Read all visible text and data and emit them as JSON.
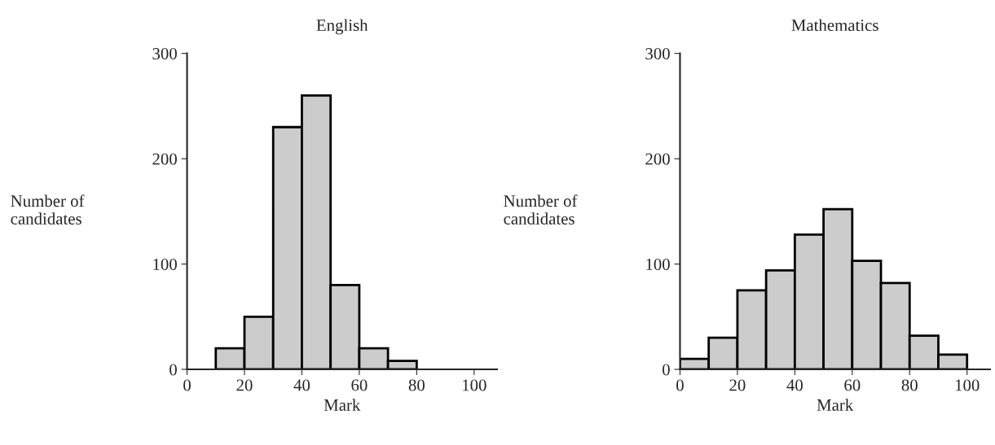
{
  "chart_data": [
    {
      "type": "histogram",
      "title": "English",
      "xlabel": "Mark",
      "ylabel": "Number of\ncandidates",
      "color": "#cccccc",
      "bins": [
        10,
        20,
        30,
        40,
        50,
        60,
        70,
        80
      ],
      "values": [
        20,
        50,
        230,
        260,
        80,
        20,
        8
      ],
      "xlim": [
        0,
        108
      ],
      "xticks": [
        0,
        20,
        40,
        60,
        80,
        100
      ],
      "ylim": [
        0,
        300
      ],
      "yticks": [
        0,
        100,
        200,
        300
      ],
      "grid": false
    },
    {
      "type": "histogram",
      "title": "Mathematics",
      "xlabel": "Mark",
      "ylabel": "Number of\ncandidates",
      "color": "#cccccc",
      "bins": [
        0,
        10,
        20,
        30,
        40,
        50,
        60,
        70,
        80,
        90,
        100
      ],
      "values": [
        10,
        30,
        75,
        94,
        128,
        152,
        103,
        82,
        32,
        14
      ],
      "xlim": [
        0,
        108
      ],
      "xticks": [
        0,
        20,
        40,
        60,
        80,
        100
      ],
      "ylim": [
        0,
        300
      ],
      "yticks": [
        0,
        100,
        200,
        300
      ],
      "grid": false
    }
  ]
}
